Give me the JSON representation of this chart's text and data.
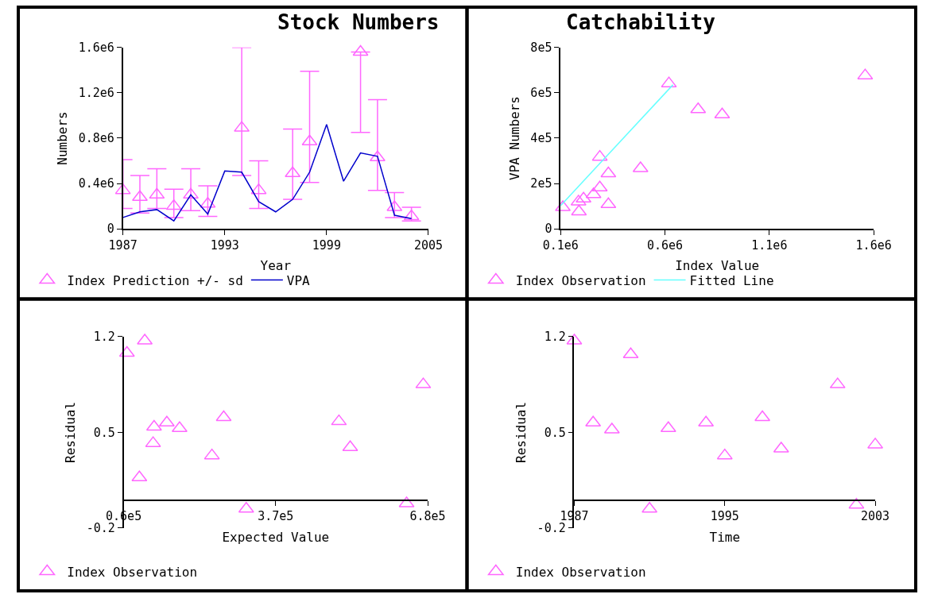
{
  "chart_data": [
    {
      "type": "line",
      "title": "Stock Numbers",
      "xlabel": "Year",
      "ylabel": "Numbers",
      "legend": "bottom",
      "x": [
        1987,
        1988,
        1989,
        1990,
        1991,
        1992,
        1993,
        1994,
        1995,
        1996,
        1997,
        1998,
        1999,
        2000,
        2001,
        2002,
        2003,
        2004
      ],
      "xlim": [
        1987,
        2005
      ],
      "xticks": [
        1987,
        1993,
        1999,
        2005
      ],
      "ylim": [
        0,
        1600000
      ],
      "yticks": [
        0,
        {
          "value": 400000,
          "label": "0.4e6"
        },
        {
          "value": 800000,
          "label": "0.8e6"
        },
        {
          "value": 1200000,
          "label": "1.2e6"
        },
        {
          "value": 1600000,
          "label": "1.6e6"
        }
      ],
      "series": [
        {
          "name": "Index Prediction +/- sd",
          "type": "scatter",
          "marker": "triangle",
          "color": "#ff66ff",
          "x": [
            1987,
            1988,
            1989,
            1990,
            1991,
            1992,
            1994,
            1995,
            1997,
            1998,
            2001,
            2002,
            2003,
            2004
          ],
          "values": [
            340000,
            280000,
            300000,
            200000,
            300000,
            220000,
            890000,
            340000,
            490000,
            770000,
            1560000,
            630000,
            190000,
            110000
          ],
          "errors": [
            [
              180000,
              610000
            ],
            [
              140000,
              470000
            ],
            [
              180000,
              530000
            ],
            [
              100000,
              350000
            ],
            [
              160000,
              530000
            ],
            [
              110000,
              380000
            ],
            [
              470000,
              1600000
            ],
            [
              180000,
              600000
            ],
            [
              260000,
              880000
            ],
            [
              410000,
              1390000
            ],
            [
              850000,
              1560000
            ],
            [
              340000,
              1140000
            ],
            [
              100000,
              320000
            ],
            [
              70000,
              190000
            ]
          ]
        },
        {
          "name": "VPA",
          "type": "line",
          "marker": "none",
          "color": "#0000cc",
          "values": [
            100000,
            150000,
            170000,
            70000,
            300000,
            130000,
            510000,
            500000,
            240000,
            150000,
            260000,
            500000,
            920000,
            420000,
            670000,
            640000,
            120000,
            90000
          ]
        }
      ]
    },
    {
      "type": "scatter",
      "title": "Catchability",
      "xlabel": "Index Value",
      "ylabel": "VPA Numbers",
      "legend": "bottom",
      "xlim": [
        100000,
        1600000
      ],
      "xticks": [
        {
          "value": 100000,
          "label": "0.1e6"
        },
        {
          "value": 600000,
          "label": "0.6e6"
        },
        {
          "value": 1100000,
          "label": "1.1e6"
        },
        {
          "value": 1600000,
          "label": "1.6e6"
        }
      ],
      "ylim": [
        0,
        800000
      ],
      "yticks": [
        0,
        {
          "value": 200000,
          "label": "2e5"
        },
        {
          "value": 400000,
          "label": "4e5"
        },
        {
          "value": 600000,
          "label": "6e5"
        },
        {
          "value": 800000,
          "label": "8e5"
        }
      ],
      "series": [
        {
          "name": "Index Observation",
          "type": "scatter",
          "marker": "triangle",
          "color": "#ff66ff",
          "x": [
            111000,
            186000,
            188000,
            210000,
            258000,
            288000,
            288000,
            329000,
            329000,
            483000,
            619000,
            759000,
            874000,
            1559000
          ],
          "values": [
            95000,
            120000,
            76000,
            133000,
            152000,
            182000,
            317000,
            244000,
            108000,
            267000,
            641000,
            527000,
            504000,
            676000
          ]
        },
        {
          "name": "Fitted Line",
          "type": "line",
          "marker": "none",
          "color": "#66ffff",
          "x": [
            100000,
            638000
          ],
          "values": [
            102000,
            635000
          ]
        }
      ]
    },
    {
      "type": "scatter",
      "xlabel": "Expected Value",
      "ylabel": "Residual",
      "legend": "bottom",
      "xlim": [
        60000,
        680000
      ],
      "xticks": [
        {
          "value": 60000,
          "label": "0.6e5"
        },
        {
          "value": 370000,
          "label": "3.7e5"
        },
        {
          "value": 680000,
          "label": "6.8e5"
        }
      ],
      "ylim": [
        -0.2,
        1.2
      ],
      "yticks": [
        -0.2,
        0.5,
        1.2
      ],
      "series": [
        {
          "name": "Index Observation",
          "marker": "triangle",
          "color": "#ff66ff",
          "x": [
            66700,
            103000,
            92000,
            122000,
            120000,
            148000,
            174000,
            240000,
            264000,
            310000,
            499000,
            522000,
            637000,
            671000
          ],
          "values": [
            1.08,
            1.17,
            0.17,
            0.54,
            0.42,
            0.57,
            0.53,
            0.33,
            0.61,
            -0.06,
            0.58,
            0.39,
            -0.02,
            0.85
          ]
        }
      ]
    },
    {
      "type": "scatter",
      "xlabel": "Time",
      "ylabel": "Residual",
      "legend": "bottom",
      "xlim": [
        1987,
        2003
      ],
      "xticks": [
        1987,
        1995,
        2003
      ],
      "ylim": [
        -0.2,
        1.2
      ],
      "yticks": [
        -0.2,
        0.5,
        1.2
      ],
      "series": [
        {
          "name": "Index Observation",
          "marker": "triangle",
          "color": "#ff66ff",
          "x": [
            1987,
            1988,
            1989,
            1990,
            1991,
            1992,
            1994,
            1995,
            1997,
            1998,
            2001,
            2002,
            2003
          ],
          "values": [
            1.17,
            0.57,
            0.52,
            1.07,
            -0.06,
            0.53,
            0.57,
            0.33,
            0.61,
            0.38,
            0.85,
            -0.03,
            0.41
          ]
        }
      ]
    }
  ]
}
